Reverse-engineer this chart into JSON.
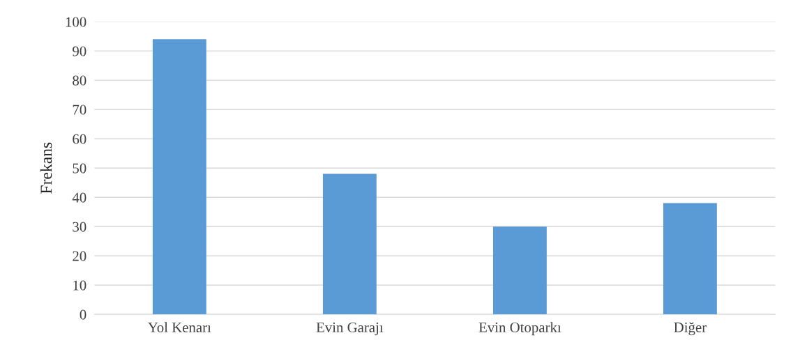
{
  "chart_data": {
    "type": "bar",
    "ylabel": "Frekans",
    "categories": [
      "Yol Kenarı",
      "Evin Garajı",
      "Evin Otoparkı",
      "Diğer"
    ],
    "values": [
      94,
      48,
      30,
      38
    ],
    "color": "#5b9bd5",
    "ylim": [
      0,
      100
    ],
    "yticks": [
      0,
      10,
      20,
      30,
      40,
      50,
      60,
      70,
      80,
      90,
      100
    ],
    "grid": "y"
  }
}
